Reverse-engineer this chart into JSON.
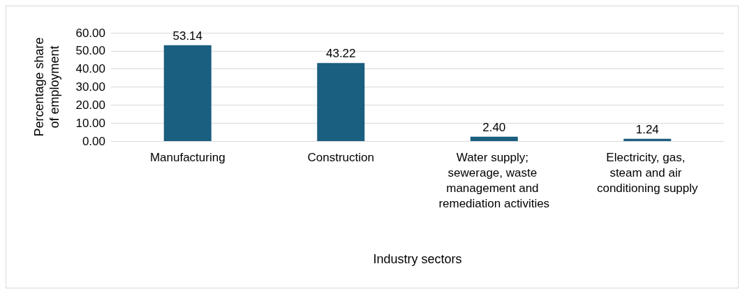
{
  "chart_data": {
    "type": "bar",
    "xlabel": "Industry sectors",
    "ylabel": "Percentage share of employment",
    "categories": [
      "Manufacturing",
      "Construction",
      "Water supply; sewerage, waste management and remediation activities",
      "Electricity, gas, steam and air conditioning supply"
    ],
    "values": [
      53.14,
      43.22,
      2.4,
      1.24
    ],
    "value_labels": [
      "53.14",
      "43.22",
      "2.40",
      "1.24"
    ],
    "color": "#1a5e80",
    "ylim": [
      0,
      60
    ],
    "yticks": [
      {
        "value": 0,
        "label": "0.00"
      },
      {
        "value": 10,
        "label": "10.00"
      },
      {
        "value": 20,
        "label": "20.00"
      },
      {
        "value": 30,
        "label": "30.00"
      },
      {
        "value": 40,
        "label": "40.00"
      },
      {
        "value": 50,
        "label": "50.00"
      },
      {
        "value": 60,
        "label": "60.00"
      }
    ],
    "grid": "y"
  }
}
